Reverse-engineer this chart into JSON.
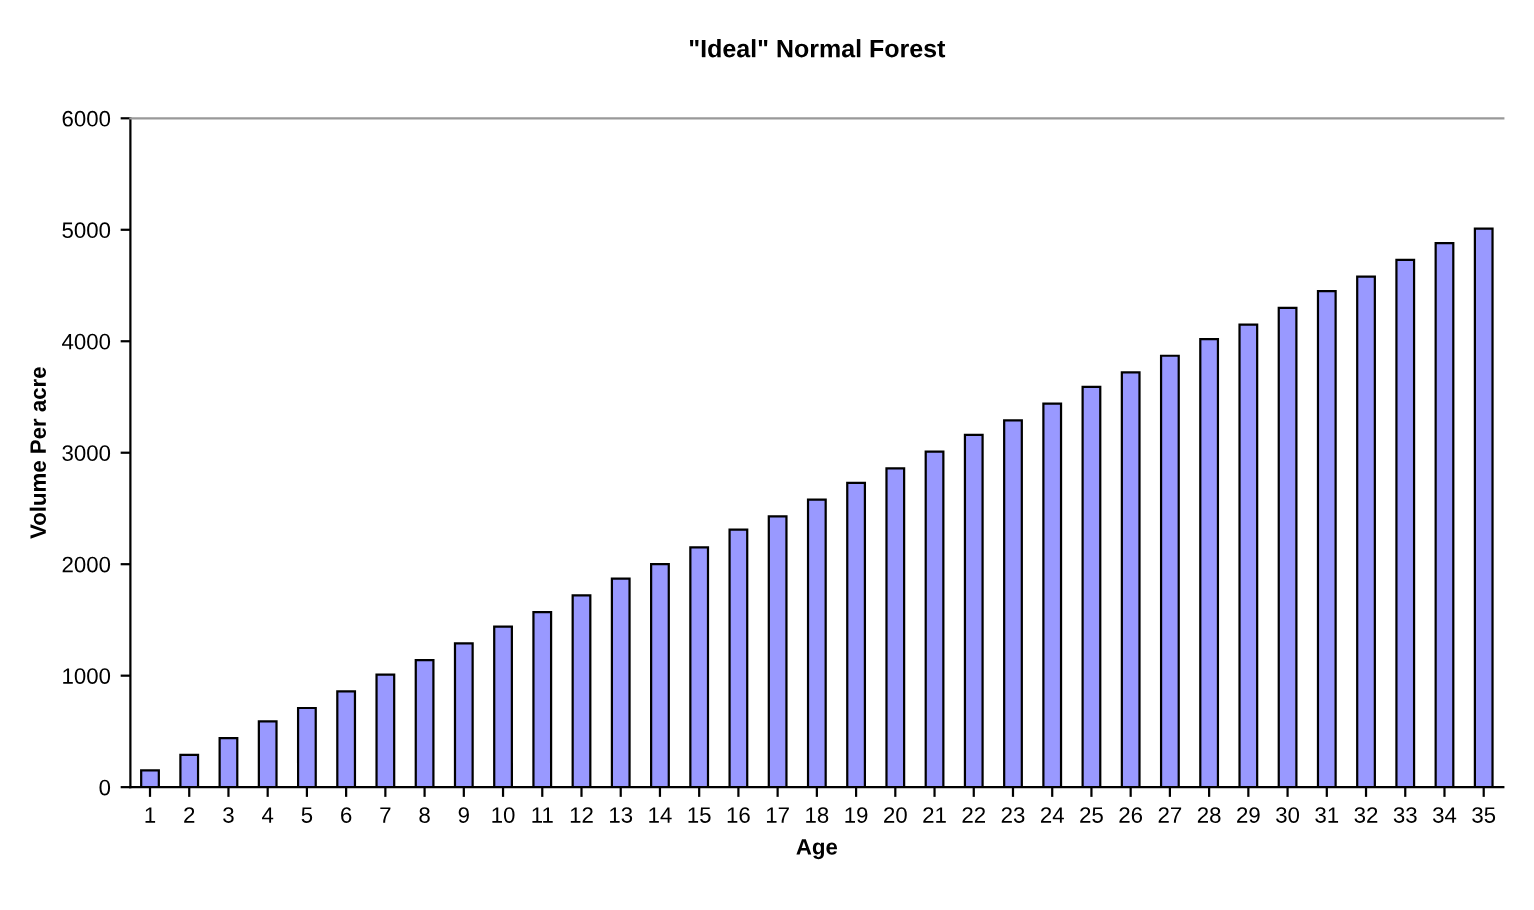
{
  "chart_data": {
    "type": "bar",
    "title": "\"Ideal\" Normal Forest",
    "xlabel": "Age",
    "ylabel": "Volume Per acre",
    "categories": [
      "1",
      "2",
      "3",
      "4",
      "5",
      "6",
      "7",
      "8",
      "9",
      "10",
      "11",
      "12",
      "13",
      "14",
      "15",
      "16",
      "17",
      "18",
      "19",
      "20",
      "21",
      "22",
      "23",
      "24",
      "25",
      "26",
      "27",
      "28",
      "29",
      "30",
      "31",
      "32",
      "33",
      "34",
      "35"
    ],
    "values": [
      150,
      290,
      440,
      590,
      710,
      860,
      1010,
      1140,
      1290,
      1440,
      1570,
      1720,
      1870,
      2000,
      2150,
      2310,
      2430,
      2580,
      2730,
      2860,
      3010,
      3160,
      3290,
      3440,
      3590,
      3720,
      3870,
      4020,
      4150,
      4300,
      4450,
      4580,
      4730,
      4880,
      5010
    ],
    "color": "#9999ff",
    "ylim": [
      0,
      6000
    ],
    "yticks": [
      0,
      1000,
      2000,
      3000,
      4000,
      5000,
      6000
    ],
    "grid": false,
    "legend": false
  }
}
